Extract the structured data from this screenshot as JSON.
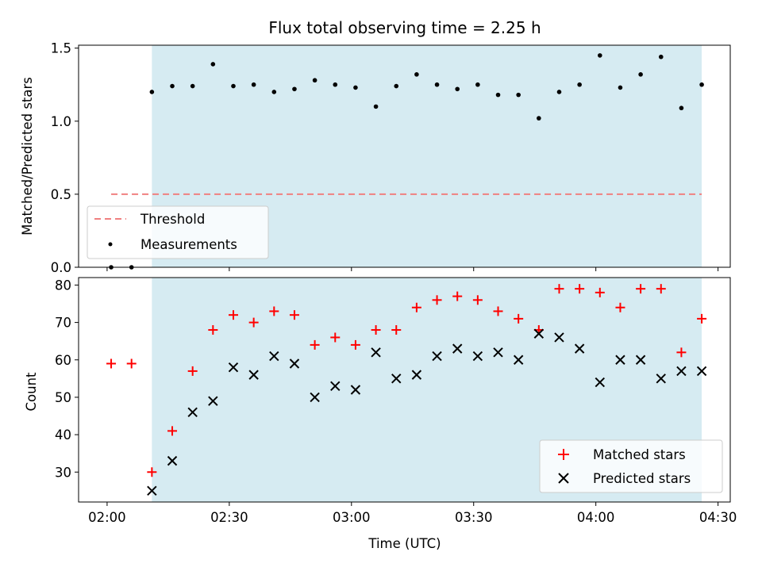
{
  "figure": {
    "title": "Flux total observing time = 2.25 h",
    "xlabel": "Time (UTC)"
  },
  "colors": {
    "shade": "#add8e6",
    "threshold": "#f08080",
    "measurement": "#000000",
    "matched": "#ff0000",
    "predicted": "#000000"
  },
  "chart_data": [
    {
      "type": "scatter",
      "title": "Flux total observing time = 2.25 h",
      "ylabel": "Matched/Predicted stars",
      "xlabel": "",
      "xlim": [
        "01:53",
        "04:33"
      ],
      "ylim": [
        0,
        1.52
      ],
      "x_ticks": [
        "02:00",
        "02:30",
        "03:00",
        "03:30",
        "04:00",
        "04:30"
      ],
      "y_ticks": [
        "0.0",
        "0.5",
        "1.0",
        "1.5"
      ],
      "shaded_span": [
        "02:11",
        "04:26"
      ],
      "threshold": {
        "name": "Threshold",
        "value": 0.5,
        "x_range": [
          "02:01",
          "04:26"
        ]
      },
      "series": [
        {
          "name": "Measurements",
          "x": [
            "02:01",
            "02:06",
            "02:11",
            "02:16",
            "02:21",
            "02:26",
            "02:31",
            "02:36",
            "02:41",
            "02:46",
            "02:51",
            "02:56",
            "03:01",
            "03:06",
            "03:11",
            "03:16",
            "03:21",
            "03:26",
            "03:31",
            "03:36",
            "03:41",
            "03:46",
            "03:51",
            "03:56",
            "04:01",
            "04:06",
            "04:11",
            "04:16",
            "04:21",
            "04:26"
          ],
          "y": [
            0.0,
            0.0,
            1.2,
            1.24,
            1.24,
            1.39,
            1.24,
            1.25,
            1.2,
            1.22,
            1.28,
            1.25,
            1.23,
            1.1,
            1.24,
            1.32,
            1.25,
            1.22,
            1.25,
            1.18,
            1.18,
            1.02,
            1.2,
            1.25,
            1.45,
            1.23,
            1.32,
            1.44,
            1.09,
            1.25
          ]
        }
      ],
      "legend": "lower-left"
    },
    {
      "type": "scatter",
      "title": "",
      "ylabel": "Count",
      "xlabel": "Time (UTC)",
      "xlim": [
        "01:53",
        "04:33"
      ],
      "ylim": [
        22,
        82
      ],
      "x_ticks": [
        "02:00",
        "02:30",
        "03:00",
        "03:30",
        "04:00",
        "04:30"
      ],
      "y_ticks": [
        "30",
        "40",
        "50",
        "60",
        "70",
        "80"
      ],
      "shaded_span": [
        "02:11",
        "04:26"
      ],
      "series": [
        {
          "name": "Matched stars",
          "marker": "+",
          "x": [
            "02:01",
            "02:06",
            "02:11",
            "02:16",
            "02:21",
            "02:26",
            "02:31",
            "02:36",
            "02:41",
            "02:46",
            "02:51",
            "02:56",
            "03:01",
            "03:06",
            "03:11",
            "03:16",
            "03:21",
            "03:26",
            "03:31",
            "03:36",
            "03:41",
            "03:46",
            "03:51",
            "03:56",
            "04:01",
            "04:06",
            "04:11",
            "04:16",
            "04:21",
            "04:26"
          ],
          "y": [
            59,
            59,
            30,
            41,
            57,
            68,
            72,
            70,
            73,
            72,
            64,
            66,
            64,
            68,
            68,
            74,
            76,
            77,
            76,
            73,
            71,
            68,
            79,
            79,
            78,
            74,
            79,
            79,
            62,
            71
          ]
        },
        {
          "name": "Predicted stars",
          "marker": "x",
          "x": [
            "02:11",
            "02:16",
            "02:21",
            "02:26",
            "02:31",
            "02:36",
            "02:41",
            "02:46",
            "02:51",
            "02:56",
            "03:01",
            "03:06",
            "03:11",
            "03:16",
            "03:21",
            "03:26",
            "03:31",
            "03:36",
            "03:41",
            "03:46",
            "03:51",
            "03:56",
            "04:01",
            "04:06",
            "04:11",
            "04:16",
            "04:21",
            "04:26"
          ],
          "y": [
            25,
            33,
            46,
            49,
            58,
            56,
            61,
            59,
            50,
            53,
            52,
            62,
            55,
            56,
            61,
            63,
            61,
            62,
            60,
            67,
            66,
            63,
            54,
            60,
            60,
            55,
            57,
            57
          ]
        }
      ],
      "legend": "lower-right"
    }
  ]
}
